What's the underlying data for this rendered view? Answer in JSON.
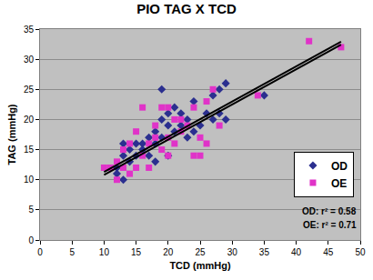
{
  "chart_data": {
    "type": "scatter",
    "title": "PIO TAG X TCD",
    "x_label": "TCD (mmHg)",
    "y_label": "TAG (mmHg)",
    "xlim": [
      0,
      50
    ],
    "xticks": [
      0,
      5,
      10,
      15,
      20,
      25,
      30,
      35,
      40,
      45,
      50
    ],
    "ylim": [
      0,
      35
    ],
    "yticks": [
      0,
      5,
      10,
      15,
      20,
      25,
      30,
      35
    ],
    "grid": true,
    "legend": "right",
    "annotations": [
      "OD: r² = 0.58",
      "OE: r² = 0.71"
    ],
    "series": [
      {
        "name": "OD",
        "color": "#2b2f8f",
        "marker": "diamond",
        "x": [
          12,
          12,
          13,
          13,
          13,
          14,
          14,
          15,
          15,
          16,
          17,
          17,
          18,
          18,
          19,
          19,
          19,
          20,
          20,
          20,
          21,
          21,
          22,
          23,
          23,
          24,
          24,
          25,
          26,
          27,
          28,
          28,
          29,
          29,
          27,
          22,
          16,
          18,
          35
        ],
        "values": [
          12,
          11,
          14,
          16,
          10,
          15,
          13,
          16,
          14,
          15,
          14,
          17,
          18,
          13,
          17,
          20,
          25,
          21,
          19,
          14,
          22,
          18,
          19,
          17,
          20,
          23,
          18,
          19,
          21,
          24,
          25,
          21,
          26,
          20,
          20,
          21,
          16,
          16,
          24
        ]
      },
      {
        "name": "OE",
        "color": "#e033c8",
        "marker": "square",
        "x": [
          10,
          11,
          12,
          12,
          13,
          13,
          14,
          14,
          15,
          15,
          16,
          16,
          17,
          17,
          18,
          18,
          19,
          19,
          20,
          20,
          20,
          21,
          21,
          22,
          22,
          23,
          24,
          24,
          25,
          25,
          26,
          26,
          27,
          28,
          34,
          42,
          47
        ],
        "values": [
          12,
          12,
          10,
          13,
          12,
          15,
          11,
          16,
          12,
          18,
          22,
          14,
          12,
          16,
          17,
          19,
          22,
          15,
          22,
          17,
          14,
          20,
          16,
          20,
          18,
          19,
          14,
          22,
          14,
          17,
          16,
          23,
          25,
          19,
          24,
          33,
          32
        ]
      },
      {
        "type": "line",
        "color": "#000000",
        "line_style": "solid",
        "x": [
          10,
          47
        ],
        "values": [
          10.8,
          32.4
        ]
      },
      {
        "type": "line",
        "color": "#000000",
        "line_style": "solid",
        "x": [
          10,
          47
        ],
        "values": [
          11.3,
          32.9
        ]
      }
    ]
  }
}
